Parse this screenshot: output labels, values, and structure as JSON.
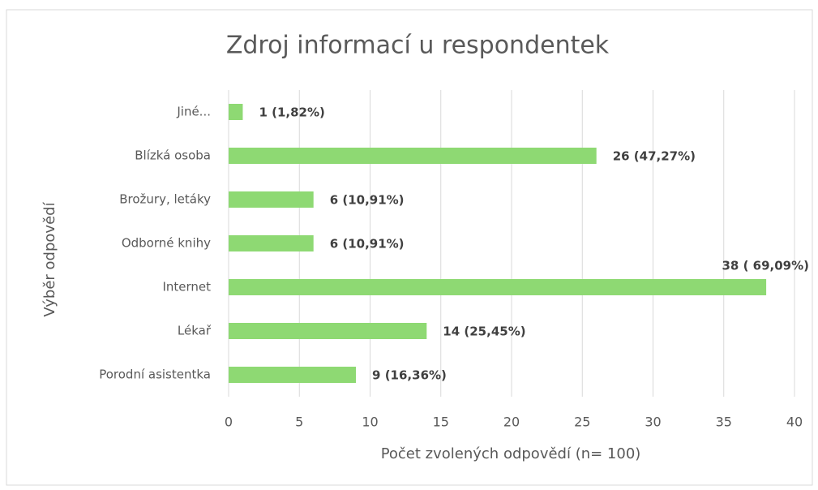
{
  "chart_data": {
    "type": "bar",
    "orientation": "horizontal",
    "title": "Zdroj informací u respondentek",
    "x_label": "Počet zvolených odpovědí (n= 100)",
    "y_label": "Výběr odpovědí",
    "categories": [
      "Jiné...",
      "Blízká osoba",
      "Brožury, letáky",
      "Odborné knihy",
      "Internet",
      "Lékař",
      "Porodní asistentka"
    ],
    "values": [
      1,
      26,
      6,
      6,
      38,
      14,
      9
    ],
    "value_labels": [
      "1 (1,82%)",
      "26 (47,27%)",
      "6 (10,91%)",
      "6 (10,91%)",
      "38 ( 69,09%)",
      "14 (25,45%)",
      "9 (16,36%)"
    ],
    "color": "#8ed973",
    "xlim": [
      0,
      40
    ],
    "xticks": [
      0,
      5,
      10,
      15,
      20,
      25,
      30,
      35,
      40
    ],
    "grid": true
  }
}
